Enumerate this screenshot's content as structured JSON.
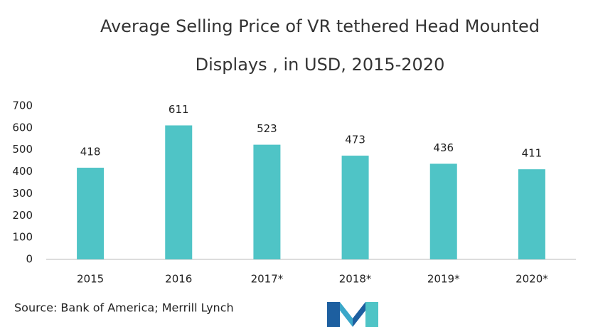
{
  "chart_data": {
    "type": "bar",
    "title": [
      "Average Selling Price of VR tethered Head Mounted",
      "Displays , in USD, 2015-2020"
    ],
    "categories": [
      "2015",
      "2016",
      "2017*",
      "2018*",
      "2019*",
      "2020*"
    ],
    "values": [
      418,
      611,
      523,
      473,
      436,
      411
    ],
    "color": "#4fc4c6",
    "ylim": [
      0,
      700
    ],
    "yticks": [
      0,
      100,
      200,
      300,
      400,
      500,
      600,
      700
    ],
    "grid": false,
    "source": "Source: Bank of America; Merrill Lynch"
  }
}
